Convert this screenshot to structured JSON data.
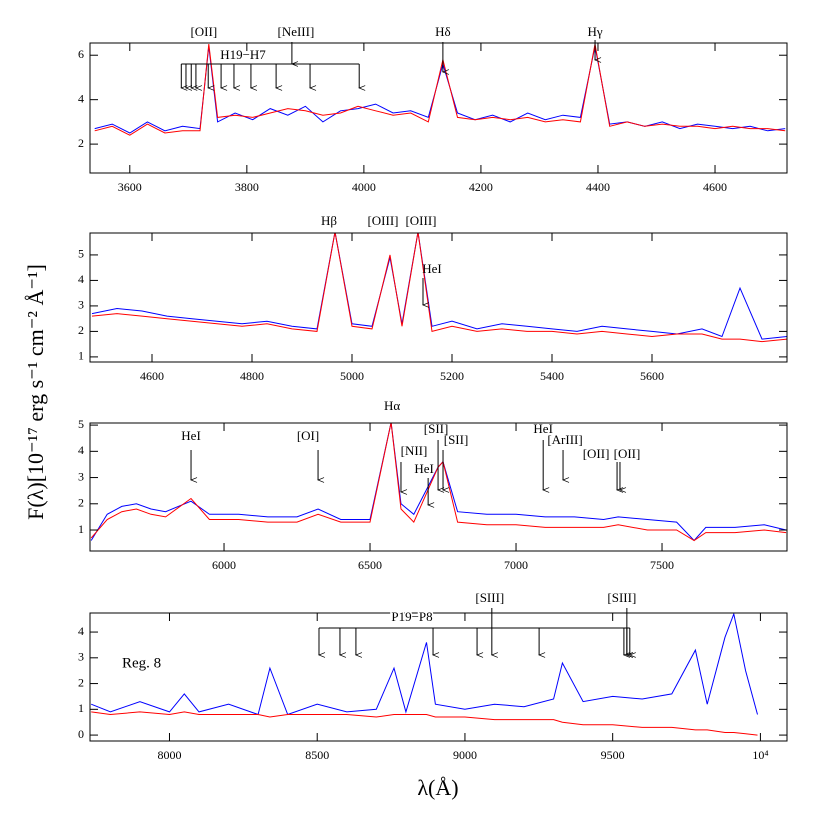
{
  "x_label": "λ(Å)",
  "y_label": "F(λ)[10⁻¹⁷ erg s⁻¹ cm⁻² Å⁻¹]",
  "chart_data": [
    {
      "type": "line",
      "x": [
        3540,
        3570,
        3600,
        3630,
        3660,
        3690,
        3720,
        3735,
        3750,
        3780,
        3810,
        3840,
        3870,
        3900,
        3930,
        3960,
        3990,
        4020,
        4050,
        4080,
        4110,
        4135,
        4160,
        4190,
        4220,
        4250,
        4280,
        4310,
        4340,
        4370,
        4395,
        4420,
        4450,
        4480,
        4510,
        4540,
        4570,
        4600,
        4630,
        4660,
        4690,
        4720
      ],
      "series": [
        {
          "color": "#0000ff",
          "values": [
            2.7,
            2.9,
            2.5,
            3.0,
            2.6,
            2.8,
            2.7,
            6.4,
            3.0,
            3.4,
            3.1,
            3.6,
            3.3,
            3.7,
            3.0,
            3.5,
            3.6,
            3.8,
            3.4,
            3.5,
            3.2,
            5.6,
            3.4,
            3.1,
            3.3,
            3.0,
            3.4,
            3.1,
            3.3,
            3.2,
            6.4,
            2.9,
            3.0,
            2.8,
            3.0,
            2.7,
            2.9,
            2.8,
            2.7,
            2.8,
            2.6,
            2.7
          ]
        },
        {
          "color": "#ff0000",
          "values": [
            2.6,
            2.8,
            2.4,
            2.9,
            2.5,
            2.6,
            2.6,
            6.5,
            3.2,
            3.3,
            3.2,
            3.4,
            3.6,
            3.5,
            3.3,
            3.4,
            3.7,
            3.5,
            3.3,
            3.4,
            3.0,
            5.8,
            3.2,
            3.1,
            3.2,
            3.1,
            3.2,
            3.0,
            3.1,
            3.0,
            6.5,
            2.8,
            3.0,
            2.8,
            2.9,
            2.8,
            2.8,
            2.7,
            2.8,
            2.7,
            2.7,
            2.6
          ]
        }
      ],
      "xlim": [
        3532,
        4723
      ],
      "ylim": [
        0.7,
        6.55
      ],
      "xticks": [
        3600,
        3800,
        4000,
        4200,
        4400,
        4600
      ],
      "yticks": [
        2,
        4,
        6
      ],
      "annotations": [
        {
          "label": "[OII]",
          "x": 3735
        },
        {
          "label": "[NeIII]",
          "x": 3877
        },
        {
          "label": "Hδ",
          "x": 4135
        },
        {
          "label": "Hγ",
          "x": 4395
        }
      ],
      "groups": [
        {
          "label": "H19−H7",
          "x": [
            3688,
            3696,
            3705,
            3713,
            3734,
            3756,
            3778,
            3807,
            3850,
            3908,
            3992
          ]
        }
      ]
    },
    {
      "type": "line",
      "x": [
        4480,
        4530,
        4580,
        4630,
        4680,
        4730,
        4780,
        4830,
        4880,
        4930,
        4966,
        5000,
        5040,
        5076,
        5100,
        5132,
        5160,
        5200,
        5250,
        5300,
        5350,
        5400,
        5450,
        5500,
        5550,
        5600,
        5650,
        5700,
        5740,
        5776,
        5820,
        5870
      ],
      "series": [
        {
          "color": "#0000ff",
          "values": [
            2.7,
            2.9,
            2.8,
            2.6,
            2.5,
            2.4,
            2.3,
            2.4,
            2.2,
            2.1,
            5.9,
            2.3,
            2.2,
            4.9,
            2.3,
            5.9,
            2.2,
            2.4,
            2.1,
            2.3,
            2.2,
            2.1,
            2.0,
            2.2,
            2.1,
            2.0,
            1.9,
            2.1,
            1.8,
            3.7,
            1.7,
            1.8
          ]
        },
        {
          "color": "#ff0000",
          "values": [
            2.6,
            2.7,
            2.6,
            2.5,
            2.4,
            2.3,
            2.2,
            2.3,
            2.1,
            2.0,
            5.9,
            2.2,
            2.1,
            5.0,
            2.2,
            5.9,
            2.0,
            2.2,
            2.0,
            2.1,
            2.0,
            2.0,
            1.9,
            2.0,
            1.9,
            1.8,
            1.9,
            1.9,
            1.7,
            1.7,
            1.6,
            1.7
          ]
        }
      ],
      "xlim": [
        4476,
        5870
      ],
      "ylim": [
        0.8,
        5.86
      ],
      "xticks": [
        4600,
        4800,
        5000,
        5200,
        5400,
        5600
      ],
      "yticks": [
        1,
        2,
        3,
        4,
        5
      ],
      "annotations": [
        {
          "label": "Hβ",
          "x": 4966
        },
        {
          "label": "[OIII]",
          "x": 5076
        },
        {
          "label": "[OIII]",
          "x": 5132
        },
        {
          "label": "HeI",
          "x": 5142
        }
      ]
    },
    {
      "type": "line",
      "x": [
        5545,
        5600,
        5650,
        5700,
        5750,
        5800,
        5887,
        5950,
        6050,
        6150,
        6250,
        6322,
        6400,
        6500,
        6572,
        6606,
        6650,
        6733,
        6750,
        6800,
        6900,
        7000,
        7100,
        7200,
        7300,
        7350,
        7450,
        7550,
        7610,
        7650,
        7750,
        7850,
        7925
      ],
      "series": [
        {
          "color": "#0000ff",
          "values": [
            0.6,
            1.6,
            1.9,
            2.0,
            1.8,
            1.7,
            2.1,
            1.6,
            1.6,
            1.5,
            1.5,
            1.8,
            1.4,
            1.4,
            5.1,
            2.0,
            1.6,
            3.4,
            3.6,
            1.7,
            1.6,
            1.6,
            1.5,
            1.5,
            1.4,
            1.5,
            1.4,
            1.3,
            0.6,
            1.1,
            1.1,
            1.2,
            1.0
          ]
        },
        {
          "color": "#ff0000",
          "values": [
            0.7,
            1.4,
            1.7,
            1.8,
            1.6,
            1.5,
            2.2,
            1.4,
            1.4,
            1.3,
            1.3,
            1.6,
            1.3,
            1.3,
            5.1,
            1.8,
            1.3,
            3.4,
            3.6,
            1.3,
            1.2,
            1.2,
            1.1,
            1.1,
            1.1,
            1.2,
            1.0,
            1.0,
            0.6,
            0.9,
            0.9,
            1.0,
            0.9
          ]
        }
      ],
      "xlim": [
        5541,
        7928
      ],
      "ylim": [
        0.2,
        5.08
      ],
      "xticks": [
        6000,
        6500,
        7000,
        7500
      ],
      "yticks": [
        1,
        2,
        3,
        4,
        5
      ],
      "annotations": [
        {
          "label": "HeI",
          "x": 5887
        },
        {
          "label": "[OI]",
          "x": 6322
        },
        {
          "label": "Hα",
          "x": 6572
        },
        {
          "label": "[NII]",
          "x": 6606
        },
        {
          "label": "HeI",
          "x": 6699
        },
        {
          "label": "[SII]",
          "x": 6733
        },
        {
          "label": "[SII]",
          "x": 6750
        },
        {
          "label": "HeI",
          "x": 7093
        },
        {
          "label": "[ArIII]",
          "x": 7161
        },
        {
          "label": "[OII]",
          "x": 7346
        },
        {
          "label": "[OII]",
          "x": 7356
        }
      ]
    },
    {
      "type": "line",
      "x": [
        7735,
        7800,
        7900,
        8000,
        8050,
        8100,
        8200,
        8300,
        8340,
        8400,
        8500,
        8600,
        8700,
        8760,
        8800,
        8870,
        8900,
        9000,
        9100,
        9200,
        9300,
        9330,
        9400,
        9500,
        9600,
        9700,
        9780,
        9820,
        9880,
        9910,
        9950,
        9990
      ],
      "series": [
        {
          "color": "#0000ff",
          "values": [
            1.2,
            0.9,
            1.3,
            0.9,
            1.6,
            0.9,
            1.2,
            0.8,
            2.6,
            0.8,
            1.2,
            0.9,
            1.0,
            2.6,
            0.9,
            3.6,
            1.2,
            1.0,
            1.2,
            1.1,
            1.4,
            2.8,
            1.3,
            1.5,
            1.4,
            1.6,
            3.3,
            1.2,
            3.8,
            4.7,
            2.5,
            0.8
          ]
        },
        {
          "color": "#ff0000",
          "values": [
            0.9,
            0.8,
            0.9,
            0.8,
            0.9,
            0.8,
            0.8,
            0.8,
            0.7,
            0.8,
            0.8,
            0.8,
            0.7,
            0.8,
            0.8,
            0.8,
            0.7,
            0.7,
            0.6,
            0.6,
            0.6,
            0.5,
            0.4,
            0.4,
            0.3,
            0.3,
            0.2,
            0.2,
            0.1,
            0.1,
            0.05,
            0
          ]
        }
      ],
      "xlim": [
        7731,
        10090
      ],
      "ylim": [
        -0.23,
        4.74
      ],
      "xticks": [
        8000,
        8500,
        9000,
        9500,
        {
          "value": 10000,
          "label": "10⁴"
        }
      ],
      "yticks": [
        0,
        1,
        2,
        3,
        4
      ],
      "annotations": [
        {
          "label": "[SIII]",
          "x": 9091
        },
        {
          "label": "[SIII]",
          "x": 9548
        }
      ],
      "groups": [
        {
          "label": "P19−P8",
          "x": [
            8506,
            8577,
            8631,
            8892,
            9041,
            9251,
            9538,
            9548,
            9558
          ]
        }
      ],
      "text": "Reg. 8"
    }
  ]
}
